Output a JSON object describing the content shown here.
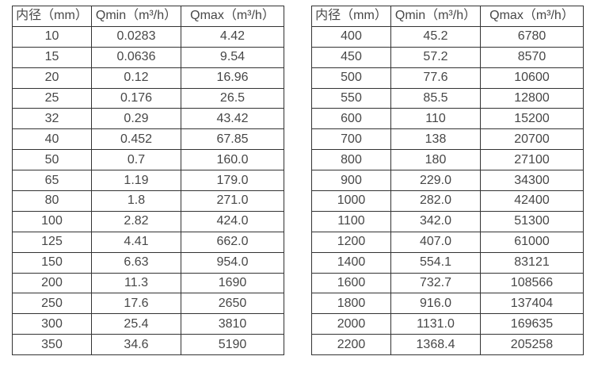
{
  "colors": {
    "text": "#474747",
    "border": "#333333",
    "background": "#ffffff"
  },
  "tables": [
    {
      "name": "flow-table-small-diameters",
      "headers": [
        "内径（mm）",
        "Qmin（m³/h）",
        "Qmax（m³/h）"
      ],
      "rows": [
        [
          "10",
          "0.0283",
          "4.42"
        ],
        [
          "15",
          "0.0636",
          "9.54"
        ],
        [
          "20",
          "0.12",
          "16.96"
        ],
        [
          "25",
          "0.176",
          "26.5"
        ],
        [
          "32",
          "0.29",
          "43.42"
        ],
        [
          "40",
          "0.452",
          "67.85"
        ],
        [
          "50",
          "0.7",
          "160.0"
        ],
        [
          "65",
          "1.19",
          "179.0"
        ],
        [
          "80",
          "1.8",
          "271.0"
        ],
        [
          "100",
          "2.82",
          "424.0"
        ],
        [
          "125",
          "4.41",
          "662.0"
        ],
        [
          "150",
          "6.63",
          "954.0"
        ],
        [
          "200",
          "11.3",
          "1690"
        ],
        [
          "250",
          "17.6",
          "2650"
        ],
        [
          "300",
          "25.4",
          "3810"
        ],
        [
          "350",
          "34.6",
          "5190"
        ]
      ]
    },
    {
      "name": "flow-table-large-diameters",
      "headers": [
        "内径（mm）",
        "Qmin（m³/h）",
        "Qmax（m³/h）"
      ],
      "rows": [
        [
          "400",
          "45.2",
          "6780"
        ],
        [
          "450",
          "57.2",
          "8570"
        ],
        [
          "500",
          "77.6",
          "10600"
        ],
        [
          "550",
          "85.5",
          "12800"
        ],
        [
          "600",
          "110",
          "15200"
        ],
        [
          "700",
          "138",
          "20700"
        ],
        [
          "800",
          "180",
          "27100"
        ],
        [
          "900",
          "229.0",
          "34300"
        ],
        [
          "1000",
          "282.0",
          "42400"
        ],
        [
          "1100",
          "342.0",
          "51300"
        ],
        [
          "1200",
          "407.0",
          "61000"
        ],
        [
          "1400",
          "554.1",
          "83121"
        ],
        [
          "1600",
          "732.7",
          "108566"
        ],
        [
          "1800",
          "916.0",
          "137404"
        ],
        [
          "2000",
          "1131.0",
          "169635"
        ],
        [
          "2200",
          "1368.4",
          "205258"
        ]
      ]
    }
  ]
}
